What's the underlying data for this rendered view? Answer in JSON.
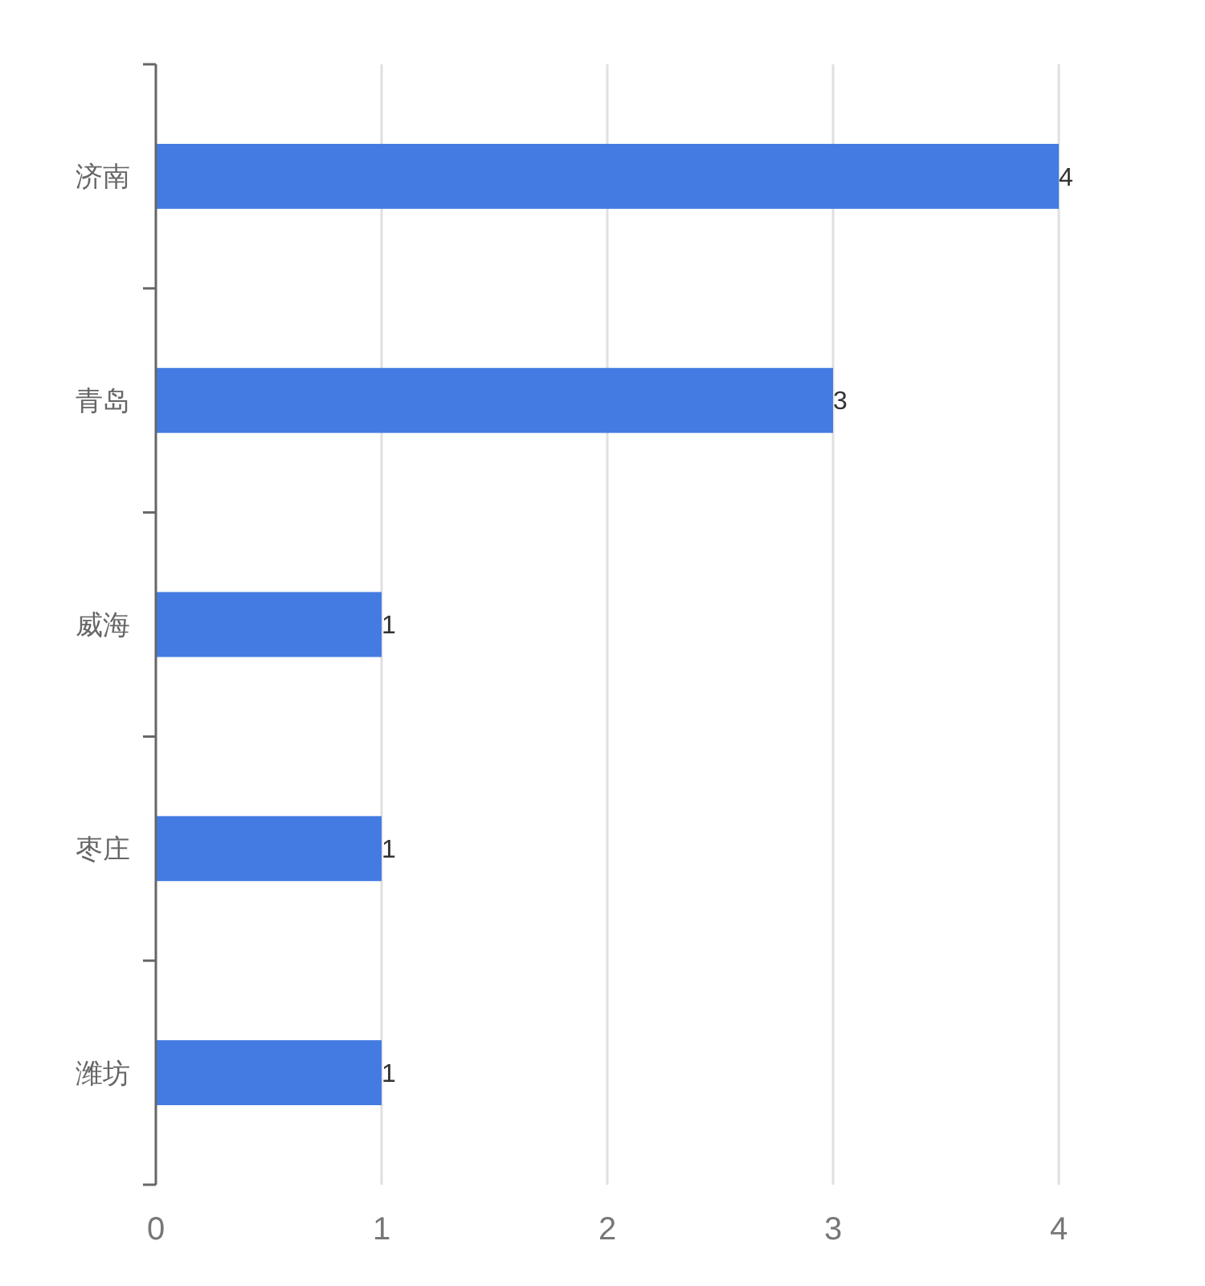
{
  "chart_data": {
    "type": "bar",
    "orientation": "horizontal",
    "categories": [
      "济南",
      "青岛",
      "威海",
      "枣庄",
      "潍坊"
    ],
    "values": [
      4,
      3,
      1,
      1,
      1
    ],
    "color": "#447be2",
    "xlim": [
      0,
      4
    ],
    "xticks": [
      0,
      1,
      2,
      3,
      4
    ],
    "grid": "x",
    "data_labels": true
  }
}
